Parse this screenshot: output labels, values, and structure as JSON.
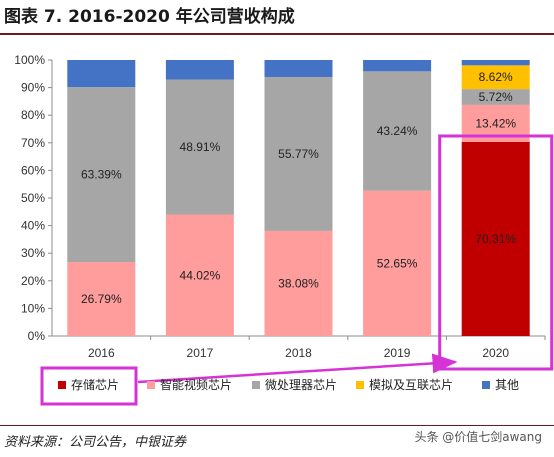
{
  "title": "图表 7.  2016-2020 年公司营收构成",
  "source": "资料来源：公司公告，中银证券",
  "watermark": "头条 @价值七剑awang",
  "colors": {
    "storage": "#c00000",
    "video": "#ff9c9c",
    "micro": "#a6a6a6",
    "analog": "#ffc000",
    "other": "#4472c4",
    "highlight": "#d633d6"
  },
  "chart_data": {
    "type": "bar",
    "stacked": true,
    "categories": [
      "2016",
      "2017",
      "2018",
      "2019",
      "2020"
    ],
    "ylim": [
      0,
      100
    ],
    "yticks": [
      "0%",
      "10%",
      "20%",
      "30%",
      "40%",
      "50%",
      "60%",
      "70%",
      "80%",
      "90%",
      "100%"
    ],
    "grid": false,
    "legend_position": "bottom",
    "series": [
      {
        "name": "存储芯片",
        "color": "#c00000",
        "values": [
          0,
          0,
          0,
          0,
          70.31
        ],
        "labels": [
          "",
          "",
          "",
          "",
          "70.31%"
        ]
      },
      {
        "name": "智能视频芯片",
        "color": "#ff9c9c",
        "values": [
          26.79,
          44.02,
          38.08,
          52.65,
          13.42
        ],
        "labels": [
          "26.79%",
          "44.02%",
          "38.08%",
          "52.65%",
          "13.42%"
        ]
      },
      {
        "name": "微处理器芯片",
        "color": "#a6a6a6",
        "values": [
          63.39,
          48.91,
          55.77,
          43.24,
          5.72
        ],
        "labels": [
          "63.39%",
          "48.91%",
          "55.77%",
          "43.24%",
          "5.72%"
        ]
      },
      {
        "name": "模拟及互联芯片",
        "color": "#ffc000",
        "values": [
          0,
          0,
          0,
          0,
          8.62
        ],
        "labels": [
          "",
          "",
          "",
          "",
          "8.62%"
        ]
      },
      {
        "name": "其他",
        "color": "#4472c4",
        "values": [
          9.82,
          7.07,
          6.15,
          4.11,
          1.93
        ],
        "labels": [
          "",
          "",
          "",
          "",
          ""
        ]
      }
    ],
    "highlights": [
      "2020",
      "存储芯片"
    ]
  }
}
